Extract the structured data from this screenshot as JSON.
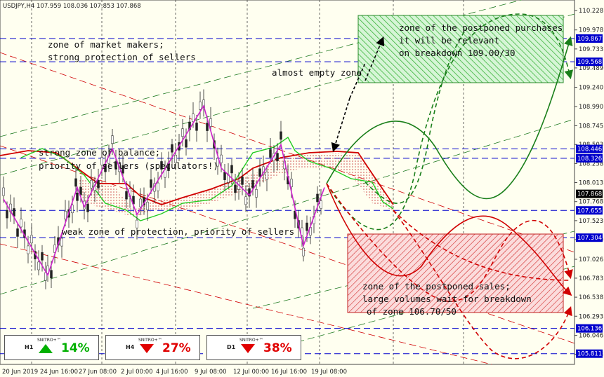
{
  "header": {
    "title": "USDJPY,H4  107.959 108.036 107.853 107.868"
  },
  "chart_data": {
    "type": "line",
    "symbol": "USDJPY,H4",
    "ohlc": {
      "open": 107.959,
      "high": 108.036,
      "low": 107.853,
      "close": 107.868
    },
    "ylim": [
      105.7,
      110.3
    ],
    "y_ticks": [
      "110.228",
      "109.978",
      "109.733",
      "109.489",
      "109.240",
      "108.990",
      "108.745",
      "108.503",
      "108.258",
      "108.013",
      "107.768",
      "107.523",
      "107.279",
      "107.026",
      "106.783",
      "106.538",
      "106.293",
      "106.046",
      "105.803"
    ],
    "x_ticks": [
      "20 Jun 2019",
      "24 Jun 16:00",
      "27 Jun 08:00",
      "2 Jul 00:00",
      "4 Jul 16:00",
      "9 Jul 08:00",
      "12 Jul 00:00",
      "16 Jul 16:00",
      "19 Jul 08:00"
    ],
    "levels": [
      {
        "value": "109.867",
        "color": "#0000cc"
      },
      {
        "value": "109.568",
        "color": "#0000cc"
      },
      {
        "value": "108.446",
        "color": "#0000cc"
      },
      {
        "value": "108.326",
        "color": "#0000cc"
      },
      {
        "value": "107.655",
        "color": "#0000cc"
      },
      {
        "value": "107.304",
        "color": "#0000cc"
      },
      {
        "value": "106.136",
        "color": "#0000cc"
      },
      {
        "value": "105.811",
        "color": "#0000cc"
      }
    ],
    "current_price": {
      "value": "107.868",
      "color": "#000000"
    },
    "zigzag": [
      107.8,
      106.82,
      107.95,
      107.7,
      108.45,
      107.6,
      109.0,
      108.2,
      107.85,
      108.5,
      107.2,
      107.95
    ],
    "zones": [
      {
        "name": "purchase zone",
        "from": 109.25,
        "to": 110.05,
        "color": "#00a000"
      },
      {
        "name": "sales zone",
        "from": 106.45,
        "to": 107.38,
        "color": "#d00000"
      }
    ]
  },
  "annotations": {
    "market_makers_1": "zone of market makers;",
    "market_makers_2": "strong protection of sellers",
    "balance_1": "strong zone of balance;",
    "balance_2": "priority of sellers (speculators!)",
    "weak_zone": "weak zone of protection, priority of sellers",
    "almost_empty": "almost empty zone",
    "purchases_1": "zone of the postponed purchases",
    "purchases_2": "it will be relevant",
    "purchases_3": "on breakdown 109.00/30",
    "sales_1": "zone of the postponed sales;",
    "sales_2": "large volumes wait for breakdown",
    "sales_3": "of zone 106.70/50"
  },
  "indicators": [
    {
      "brand": "SNITRO+™",
      "tf": "H1",
      "pct": "14%",
      "dir": "up",
      "color": "#00b000"
    },
    {
      "brand": "SNITRO+™",
      "tf": "H4",
      "pct": "27%",
      "dir": "down",
      "color": "#e00000"
    },
    {
      "brand": "SNITRO+™",
      "tf": "D1",
      "pct": "38%",
      "dir": "down",
      "color": "#e00000"
    }
  ]
}
